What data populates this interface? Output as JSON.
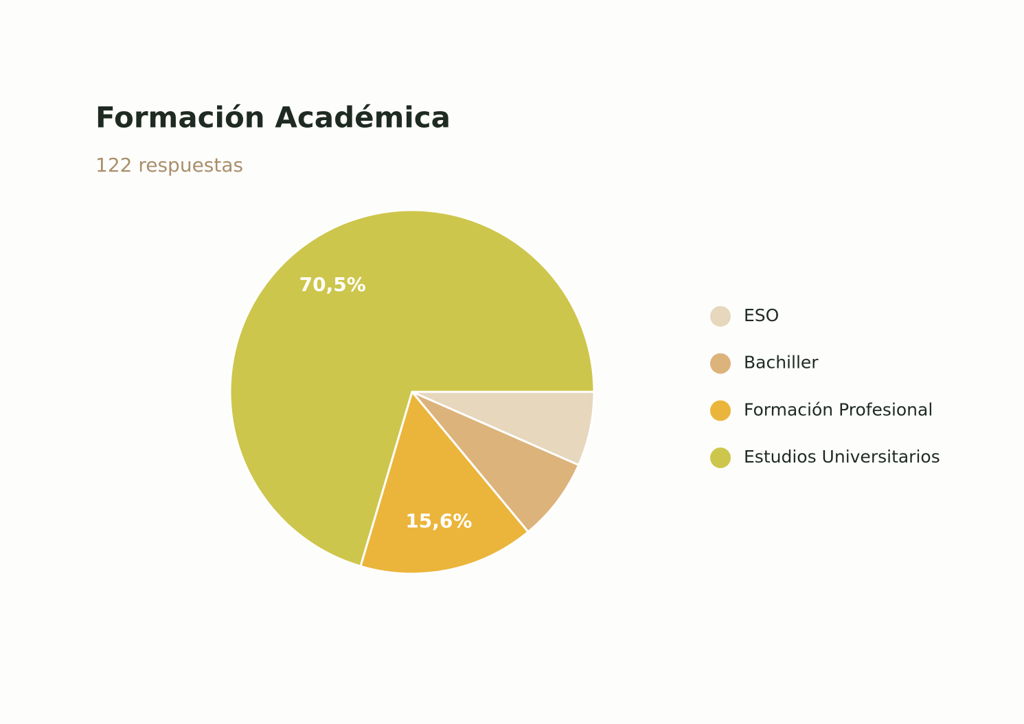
{
  "chart_data": {
    "type": "pie",
    "title": "Formación Académica",
    "subtitle": "122 respuestas",
    "categories": [
      "ESO",
      "Bachiller",
      "Formación Profesional",
      "Estudios Universitarios"
    ],
    "values": [
      6.6,
      7.4,
      15.6,
      70.5
    ],
    "value_labels": [
      null,
      null,
      "15,6%",
      "70,5%"
    ],
    "colors": [
      "#e6d7bd",
      "#dcb37b",
      "#ebb53b",
      "#cdc64c"
    ],
    "legend": "right"
  }
}
